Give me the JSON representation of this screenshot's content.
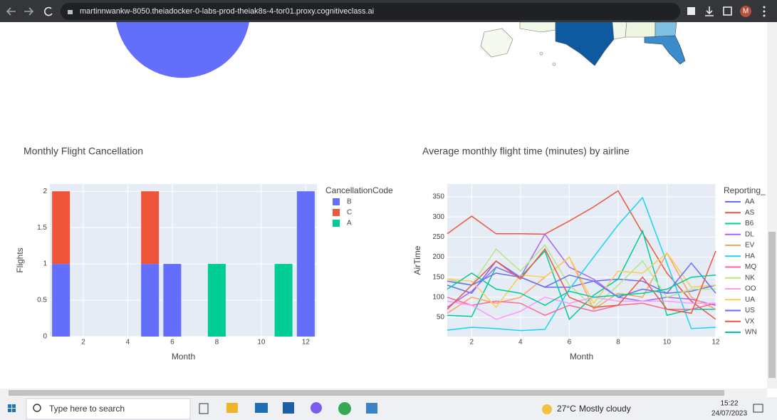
{
  "browser": {
    "url": "martinnwankw-8050.theiadocker-0-labs-prod-theiak8s-4-tor01.proxy.cognitiveclass.ai",
    "avatar": "M"
  },
  "chart_data": [
    {
      "type": "bar",
      "title": "Monthly Flight Cancellation",
      "x_label": "Month",
      "y_label": "Flights",
      "legend_title": "CancellationCode",
      "stacked": true,
      "grid": true,
      "x": [
        1,
        5,
        6,
        8,
        11,
        12
      ],
      "series": [
        {
          "name": "B",
          "color": "#636efa",
          "values": [
            1,
            1,
            1,
            null,
            null,
            2
          ]
        },
        {
          "name": "C",
          "color": "#ef553b",
          "values": [
            1,
            1,
            null,
            null,
            null,
            null
          ]
        },
        {
          "name": "A",
          "color": "#00cc96",
          "values": [
            null,
            null,
            null,
            1,
            1,
            null
          ]
        }
      ],
      "xlim": [
        0.5,
        12.5
      ],
      "xticks": [
        2,
        4,
        6,
        8,
        10,
        12
      ],
      "ylim": [
        0,
        2.1
      ],
      "yticks": [
        0,
        0.5,
        1,
        1.5,
        2
      ]
    },
    {
      "type": "line",
      "title": "Average monthly flight time (minutes) by airline",
      "x_label": "Month",
      "y_label": "AirTime",
      "legend_title": "Reporting_",
      "grid": true,
      "x": [
        1,
        2,
        3,
        4,
        5,
        6,
        7,
        8,
        9,
        10,
        11,
        12
      ],
      "series": [
        {
          "name": "AA",
          "color": "#636efa",
          "values": [
            130,
            110,
            190,
            150,
            125,
            125,
            140,
            145,
            140,
            110,
            115,
            130
          ]
        },
        {
          "name": "AS",
          "color": "#ef553b",
          "values": [
            258,
            302,
            258,
            258,
            257,
            290,
            325,
            365,
            260,
            160,
            90,
            45
          ]
        },
        {
          "name": "B6",
          "color": "#00cc96",
          "values": [
            55,
            52,
            175,
            150,
            215,
            45,
            105,
            145,
            265,
            55,
            70,
            70
          ]
        },
        {
          "name": "DL",
          "color": "#ab63fa",
          "values": [
            75,
            115,
            175,
            150,
            257,
            175,
            145,
            100,
            90,
            100,
            95,
            80
          ]
        },
        {
          "name": "EV",
          "color": "#ffa15a",
          "values": [
            60,
            100,
            85,
            100,
            150,
            200,
            70,
            110,
            100,
            210,
            100,
            70
          ]
        },
        {
          "name": "HA",
          "color": "#19d3f3",
          "values": [
            18,
            25,
            22,
            17,
            20,
            120,
            200,
            280,
            348,
            185,
            22,
            25
          ]
        },
        {
          "name": "MQ",
          "color": "#ff6692",
          "values": [
            100,
            80,
            90,
            85,
            55,
            80,
            65,
            80,
            85,
            70,
            70,
            85
          ]
        },
        {
          "name": "NK",
          "color": "#b6e880",
          "values": [
            145,
            130,
            220,
            165,
            230,
            130,
            75,
            130,
            190,
            100,
            120,
            120
          ]
        },
        {
          "name": "OO",
          "color": "#ff97ff",
          "values": [
            90,
            80,
            45,
            65,
            100,
            85,
            100,
            90,
            90,
            90,
            85,
            85
          ]
        },
        {
          "name": "UA",
          "color": "#fecb52",
          "values": [
            145,
            140,
            75,
            155,
            150,
            200,
            85,
            165,
            160,
            210,
            125,
            130
          ]
        },
        {
          "name": "US",
          "color": "#636efa",
          "values": [
            140,
            130,
            160,
            150,
            125,
            155,
            140,
            100,
            120,
            110,
            185,
            110
          ]
        },
        {
          "name": "VX",
          "color": "#ef553b",
          "values": [
            70,
            130,
            190,
            145,
            220,
            100,
            75,
            80,
            150,
            70,
            60,
            215
          ]
        },
        {
          "name": "WN",
          "color": "#00cc96",
          "values": [
            120,
            160,
            120,
            110,
            80,
            115,
            100,
            105,
            110,
            120,
            150,
            155
          ]
        }
      ],
      "xlim": [
        1,
        12
      ],
      "xticks": [
        2,
        4,
        6,
        8,
        10,
        12
      ],
      "ylim": [
        2,
        382
      ],
      "yticks": [
        50,
        100,
        150,
        200,
        250,
        300,
        350
      ]
    }
  ],
  "taskbar": {
    "search": "Type here to search",
    "temperature": "27°C",
    "weather": "Mostly cloudy",
    "time": "15:22",
    "date": "24/07/2023"
  }
}
